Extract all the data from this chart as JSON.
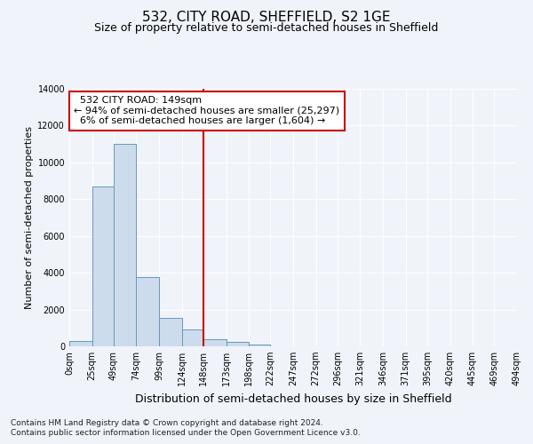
{
  "title": "532, CITY ROAD, SHEFFIELD, S2 1GE",
  "subtitle": "Size of property relative to semi-detached houses in Sheffield",
  "xlabel": "Distribution of semi-detached houses by size in Sheffield",
  "ylabel": "Number of semi-detached properties",
  "property_label": "532 CITY ROAD: 149sqm",
  "pct_smaller": 94,
  "count_smaller": 25297,
  "pct_larger": 6,
  "count_larger": 1604,
  "bin_edges": [
    0,
    25,
    49,
    74,
    99,
    124,
    148,
    173,
    198,
    222,
    247,
    272,
    296,
    321,
    346,
    371,
    395,
    420,
    445,
    469,
    494
  ],
  "bin_labels": [
    "0sqm",
    "25sqm",
    "49sqm",
    "74sqm",
    "99sqm",
    "124sqm",
    "148sqm",
    "173sqm",
    "198sqm",
    "222sqm",
    "247sqm",
    "272sqm",
    "296sqm",
    "321sqm",
    "346sqm",
    "371sqm",
    "395sqm",
    "420sqm",
    "445sqm",
    "469sqm",
    "494sqm"
  ],
  "bar_heights": [
    300,
    8700,
    11000,
    3750,
    1550,
    900,
    400,
    250,
    120,
    0,
    0,
    0,
    0,
    0,
    0,
    0,
    0,
    0,
    0,
    0
  ],
  "bar_color": "#cddcec",
  "bar_edge_color": "#6699bb",
  "vline_color": "#cc0000",
  "vline_x": 148,
  "ylim": [
    0,
    14000
  ],
  "yticks": [
    0,
    2000,
    4000,
    6000,
    8000,
    10000,
    12000,
    14000
  ],
  "footer_line1": "Contains HM Land Registry data © Crown copyright and database right 2024.",
  "footer_line2": "Contains public sector information licensed under the Open Government Licence v3.0.",
  "bg_color": "#f0f4fa",
  "plot_bg_color": "#f0f4fa",
  "grid_color": "#ffffff",
  "annotation_box_color": "#cc0000",
  "title_fontsize": 11,
  "subtitle_fontsize": 9,
  "xlabel_fontsize": 9,
  "ylabel_fontsize": 8,
  "tick_fontsize": 7,
  "footer_fontsize": 6.5,
  "annot_fontsize": 8
}
